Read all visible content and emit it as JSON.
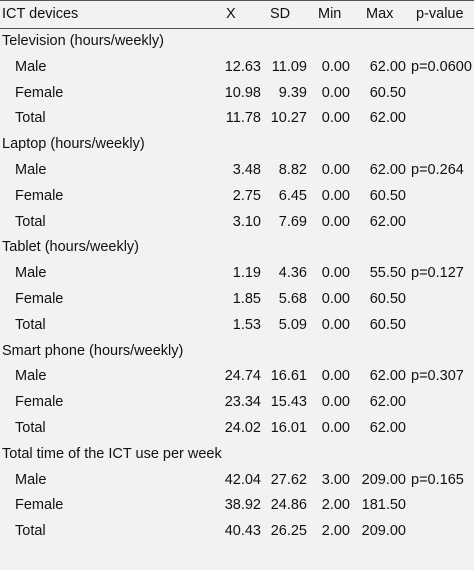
{
  "header": {
    "columns": [
      "ICT devices",
      "X",
      "SD",
      "Min",
      "Max",
      "p-value"
    ]
  },
  "groups": [
    {
      "title": "Television (hours/weekly)",
      "p_value": "p=0.0600",
      "rows": [
        {
          "label": "Male",
          "values": [
            "12.63",
            "11.09",
            "0.00",
            "62.00"
          ]
        },
        {
          "label": "Female",
          "values": [
            "10.98",
            "9.39",
            "0.00",
            "60.50"
          ]
        },
        {
          "label": "Total",
          "values": [
            "11.78",
            "10.27",
            "0.00",
            "62.00"
          ]
        }
      ]
    },
    {
      "title": "Laptop (hours/weekly)",
      "p_value": "p=0.264",
      "rows": [
        {
          "label": "Male",
          "values": [
            "3.48",
            "8.82",
            "0.00",
            "62.00"
          ]
        },
        {
          "label": "Female",
          "values": [
            "2.75",
            "6.45",
            "0.00",
            "60.50"
          ]
        },
        {
          "label": "Total",
          "values": [
            "3.10",
            "7.69",
            "0.00",
            "62.00"
          ]
        }
      ]
    },
    {
      "title": "Tablet (hours/weekly)",
      "p_value": "p=0.127",
      "rows": [
        {
          "label": "Male",
          "values": [
            "1.19",
            "4.36",
            "0.00",
            "55.50"
          ]
        },
        {
          "label": "Female",
          "values": [
            "1.85",
            "5.68",
            "0.00",
            "60.50"
          ]
        },
        {
          "label": "Total",
          "values": [
            "1.53",
            "5.09",
            "0.00",
            "60.50"
          ]
        }
      ]
    },
    {
      "title": "Smart phone (hours/weekly)",
      "p_value": "p=0.307",
      "rows": [
        {
          "label": "Male",
          "values": [
            "24.74",
            "16.61",
            "0.00",
            "62.00"
          ]
        },
        {
          "label": "Female",
          "values": [
            "23.34",
            "15.43",
            "0.00",
            "62.00"
          ]
        },
        {
          "label": "Total",
          "values": [
            "24.02",
            "16.01",
            "0.00",
            "62.00"
          ]
        }
      ]
    },
    {
      "title": "Total time of the ICT use per week",
      "p_value": "p=0.165",
      "rows": [
        {
          "label": "Male",
          "values": [
            "42.04",
            "27.62",
            "3.00",
            "209.00"
          ]
        },
        {
          "label": "Female",
          "values": [
            "38.92",
            "24.86",
            "2.00",
            "181.50"
          ]
        },
        {
          "label": "Total",
          "values": [
            "40.43",
            "26.25",
            "2.00",
            "209.00"
          ]
        }
      ]
    }
  ]
}
